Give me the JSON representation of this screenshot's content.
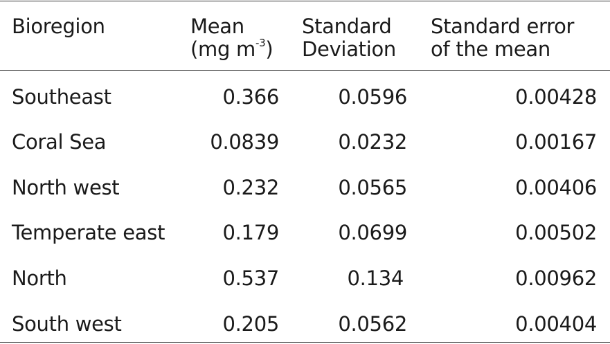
{
  "table": {
    "headers": {
      "bioregion": "Bioregion",
      "mean_line1": "Mean",
      "mean_line2_prefix": "(mg m",
      "mean_sup": "-3",
      "mean_line2_suffix": ")",
      "sd_line1": "Standard",
      "sd_line2": "Deviation",
      "sem_line1": "Standard error",
      "sem_line2": "of the mean"
    },
    "rows": [
      {
        "bioregion": "Southeast",
        "mean": "0.366",
        "sd": "0.0596",
        "sem": "0.00428"
      },
      {
        "bioregion": "Coral Sea",
        "mean": "0.0839",
        "sd": "0.0232",
        "sem": "0.00167"
      },
      {
        "bioregion": "North west",
        "mean": "0.232",
        "sd": "0.0565",
        "sem": "0.00406"
      },
      {
        "bioregion": "Temperate east",
        "mean": "0.179",
        "sd": "0.0699",
        "sem": "0.00502"
      },
      {
        "bioregion": "North",
        "mean": "0.537",
        "sd": "0.134",
        "sem": "0.00962"
      },
      {
        "bioregion": "South west",
        "mean": "0.205",
        "sd": "0.0562",
        "sem": "0.00404"
      }
    ]
  }
}
